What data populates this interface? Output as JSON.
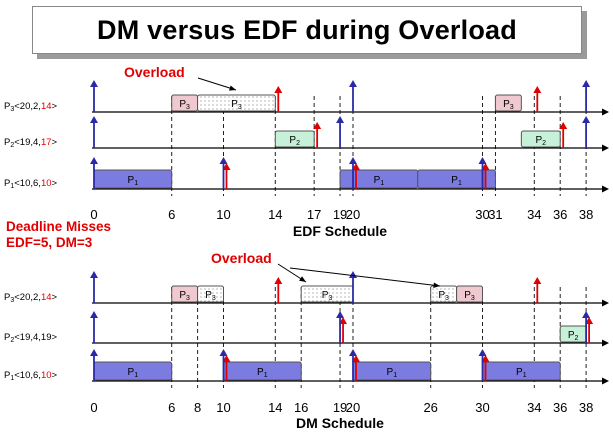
{
  "title": "DM versus EDF during Overload",
  "colors": {
    "arrival": "#2a2aa8",
    "deadline": "#e00000",
    "p1_fill": "#7b7be0",
    "p2_fill": "#c6f0d8",
    "p3_fill": "#f0c8d0",
    "overload_fill": "#ffffff",
    "overload_text": "#e00000"
  },
  "deadline_misses": {
    "heading": "Deadline Misses",
    "detail": "EDF=5, DM=3"
  },
  "schedules": [
    {
      "caption": "EDF Schedule",
      "overload_label": "Overload",
      "rows": [
        {
          "label_main": "P",
          "label_sub": "3",
          "label_params": "<20,2,",
          "label_deadline": "14",
          "label_close": ">",
          "arrivals": [
            0,
            20,
            38
          ],
          "deadlines": [
            14,
            34
          ],
          "blocks": [
            {
              "start": 6,
              "end": 8,
              "task": "P",
              "sub": "3",
              "style": "p3"
            },
            {
              "start": 8,
              "end": 14,
              "task": "P",
              "sub": "3",
              "style": "overload"
            },
            {
              "start": 31,
              "end": 33,
              "task": "P",
              "sub": "3",
              "style": "p3"
            }
          ]
        },
        {
          "label_main": "P",
          "label_sub": "2",
          "label_params": "<19,4,",
          "label_deadline": "17",
          "label_close": ">",
          "arrivals": [
            0,
            19,
            38
          ],
          "deadlines": [
            17,
            36
          ],
          "blocks": [
            {
              "start": 14,
              "end": 17,
              "task": "P",
              "sub": "2",
              "style": "p2"
            },
            {
              "start": 33,
              "end": 36,
              "task": "P",
              "sub": "2",
              "style": "p2"
            }
          ]
        },
        {
          "label_main": "P",
          "label_sub": "1",
          "label_params": "<10,6,",
          "label_deadline": "10",
          "label_close": ">",
          "arrivals": [
            0,
            10,
            20,
            30
          ],
          "deadlines": [
            10,
            20,
            30
          ],
          "blocks": [
            {
              "start": 0,
              "end": 6,
              "task": "P",
              "sub": "1",
              "style": "p1"
            },
            {
              "start": 19,
              "end": 25,
              "task": "P",
              "sub": "1",
              "style": "p1"
            },
            {
              "start": 25,
              "end": 31,
              "task": "P",
              "sub": "1",
              "style": "p1"
            }
          ]
        }
      ],
      "ticks": [
        0,
        6,
        10,
        14,
        17,
        19,
        20,
        30,
        31,
        34,
        36,
        38
      ]
    },
    {
      "caption": "DM Schedule",
      "overload_label": "Overload",
      "rows": [
        {
          "label_main": "P",
          "label_sub": "3",
          "label_params": "<20,2,",
          "label_deadline": "14",
          "label_close": ">",
          "arrivals": [
            0,
            20
          ],
          "deadlines": [
            14,
            34
          ],
          "blocks": [
            {
              "start": 6,
              "end": 8,
              "task": "P",
              "sub": "3",
              "style": "p3"
            },
            {
              "start": 8,
              "end": 10,
              "task": "P",
              "sub": "3",
              "style": "overload"
            },
            {
              "start": 16,
              "end": 20,
              "task": "P",
              "sub": "3",
              "style": "overload"
            },
            {
              "start": 26,
              "end": 28,
              "task": "P",
              "sub": "3",
              "style": "overload"
            },
            {
              "start": 28,
              "end": 30,
              "task": "P",
              "sub": "3",
              "style": "p3"
            }
          ]
        },
        {
          "label_main": "P",
          "label_sub": "2",
          "label_params": "<19,4,19",
          "label_deadline": "",
          "label_close": ">",
          "arrivals": [
            0,
            19,
            38
          ],
          "deadlines": [
            19,
            38
          ],
          "blocks": [
            {
              "start": 36,
              "end": 38,
              "task": "P",
              "sub": "2",
              "style": "p2"
            }
          ]
        },
        {
          "label_main": "P",
          "label_sub": "1",
          "label_params": "<10,6,",
          "label_deadline": "10",
          "label_close": ">",
          "arrivals": [
            0,
            10,
            20,
            30
          ],
          "deadlines": [
            10,
            20,
            30
          ],
          "blocks": [
            {
              "start": 0,
              "end": 6,
              "task": "P",
              "sub": "1",
              "style": "p1"
            },
            {
              "start": 10,
              "end": 16,
              "task": "P",
              "sub": "1",
              "style": "p1"
            },
            {
              "start": 20,
              "end": 26,
              "task": "P",
              "sub": "1",
              "style": "p1"
            },
            {
              "start": 30,
              "end": 36,
              "task": "P",
              "sub": "1",
              "style": "p1"
            }
          ]
        }
      ],
      "ticks": [
        0,
        6,
        8,
        10,
        14,
        16,
        19,
        20,
        26,
        30,
        34,
        36,
        38
      ]
    }
  ]
}
